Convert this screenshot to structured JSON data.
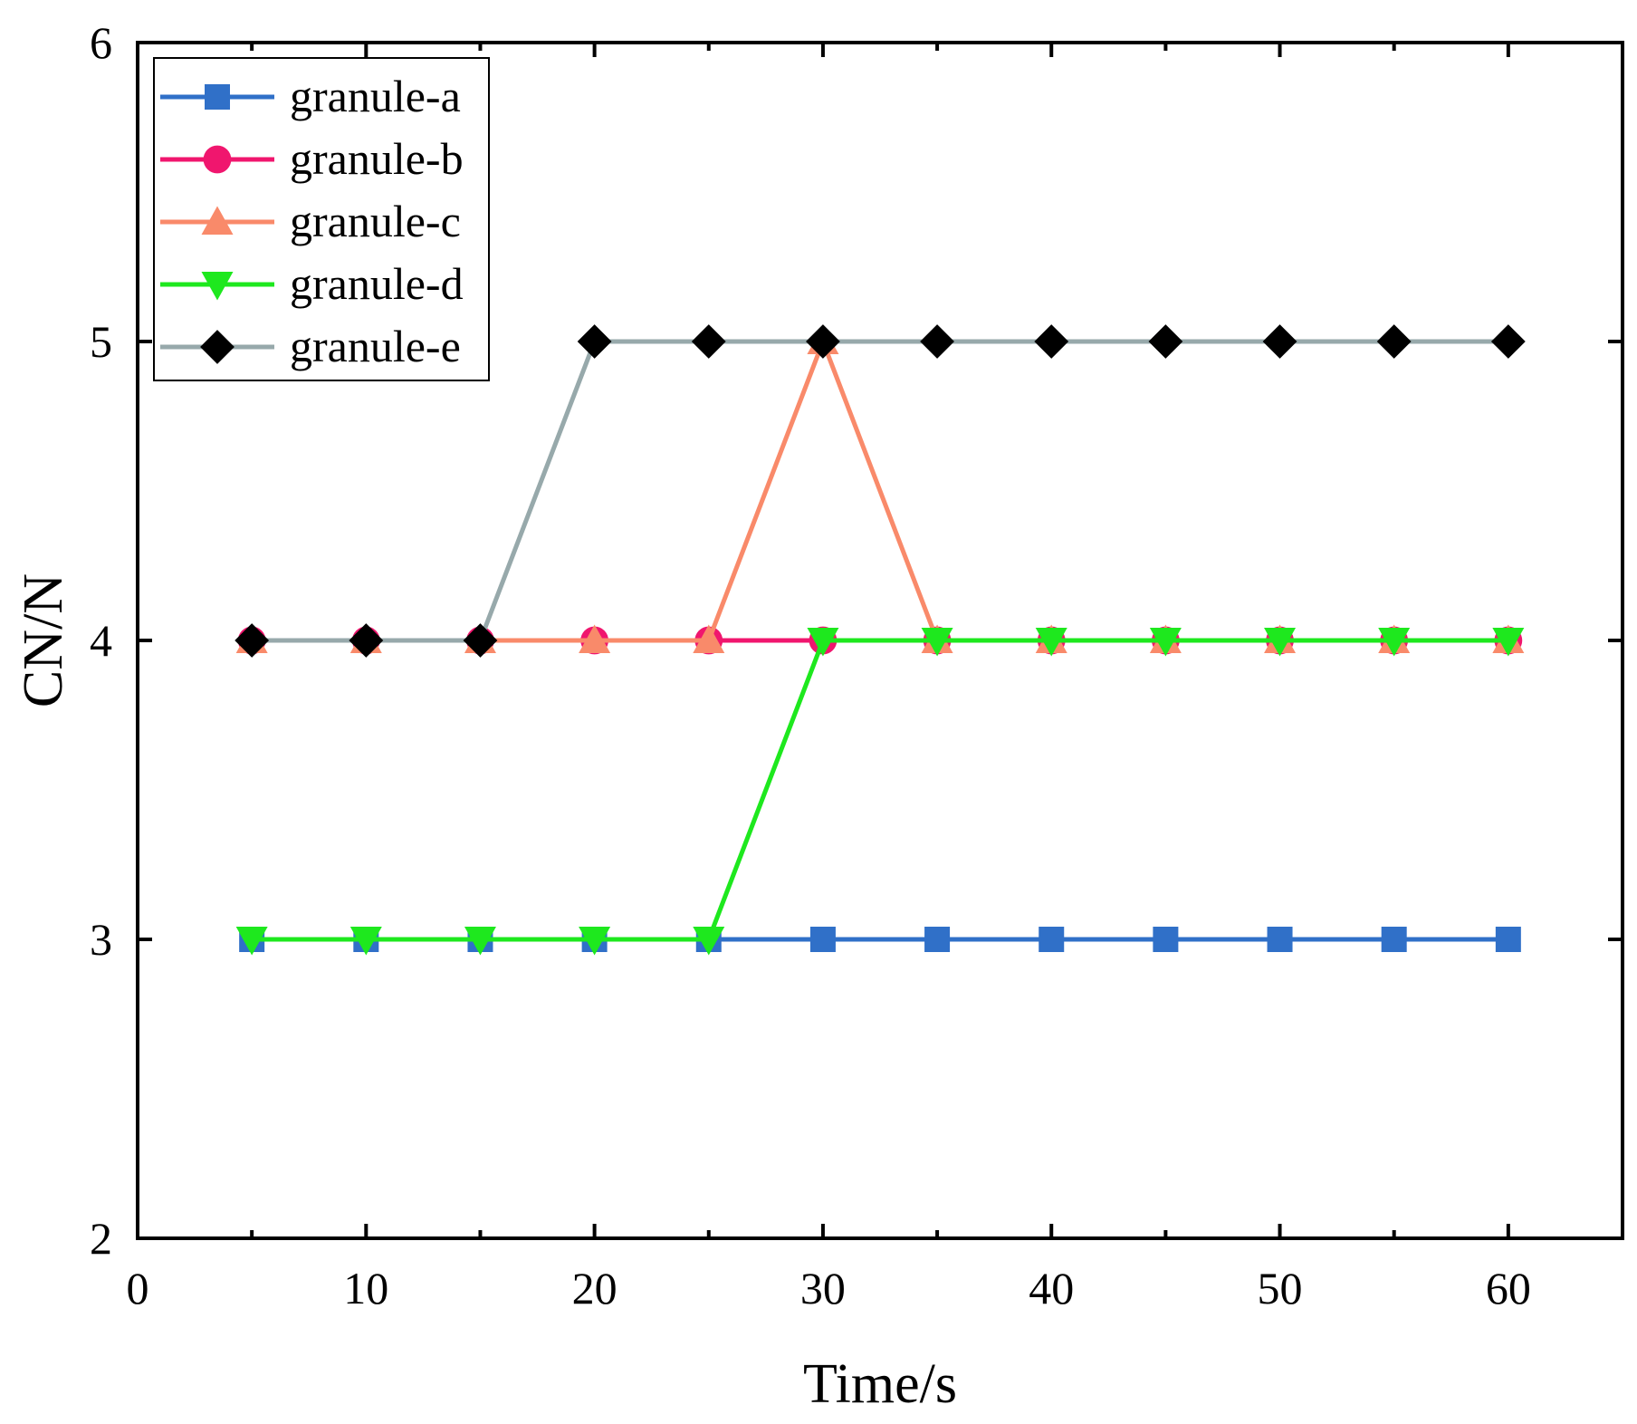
{
  "chart_data": {
    "type": "line",
    "title": "",
    "xlabel": "Time/s",
    "ylabel": "CN/N",
    "xlim": [
      0,
      65
    ],
    "ylim": [
      2,
      6
    ],
    "xticks": [
      0,
      10,
      20,
      30,
      40,
      50,
      60
    ],
    "yticks": [
      2,
      3,
      4,
      5,
      6
    ],
    "minor_xticks": [
      5,
      15,
      25,
      35,
      45,
      55
    ],
    "grid": false,
    "legend_position": "top-left",
    "x": [
      5,
      10,
      15,
      20,
      25,
      30,
      35,
      40,
      45,
      50,
      55,
      60
    ],
    "series": [
      {
        "name": "granule-a",
        "color": "#3070c8",
        "marker": "square",
        "values": [
          3,
          3,
          3,
          3,
          3,
          3,
          3,
          3,
          3,
          3,
          3,
          3
        ]
      },
      {
        "name": "granule-b",
        "color": "#f0166e",
        "marker": "circle",
        "values": [
          4,
          4,
          4,
          4,
          4,
          4,
          4,
          4,
          4,
          4,
          4,
          4
        ]
      },
      {
        "name": "granule-c",
        "color": "#f98a6a",
        "marker": "triangle-up",
        "values": [
          4,
          4,
          4,
          4,
          4,
          5,
          4,
          4,
          4,
          4,
          4,
          4
        ]
      },
      {
        "name": "granule-d",
        "color": "#1ee81e",
        "marker": "triangle-down",
        "values": [
          3,
          3,
          3,
          3,
          3,
          4,
          4,
          4,
          4,
          4,
          4,
          4
        ]
      },
      {
        "name": "granule-e",
        "color": "#97a9ab",
        "marker": "diamond",
        "marker_color": "#000000",
        "values": [
          4,
          4,
          4,
          5,
          5,
          5,
          5,
          5,
          5,
          5,
          5,
          5
        ]
      }
    ]
  }
}
